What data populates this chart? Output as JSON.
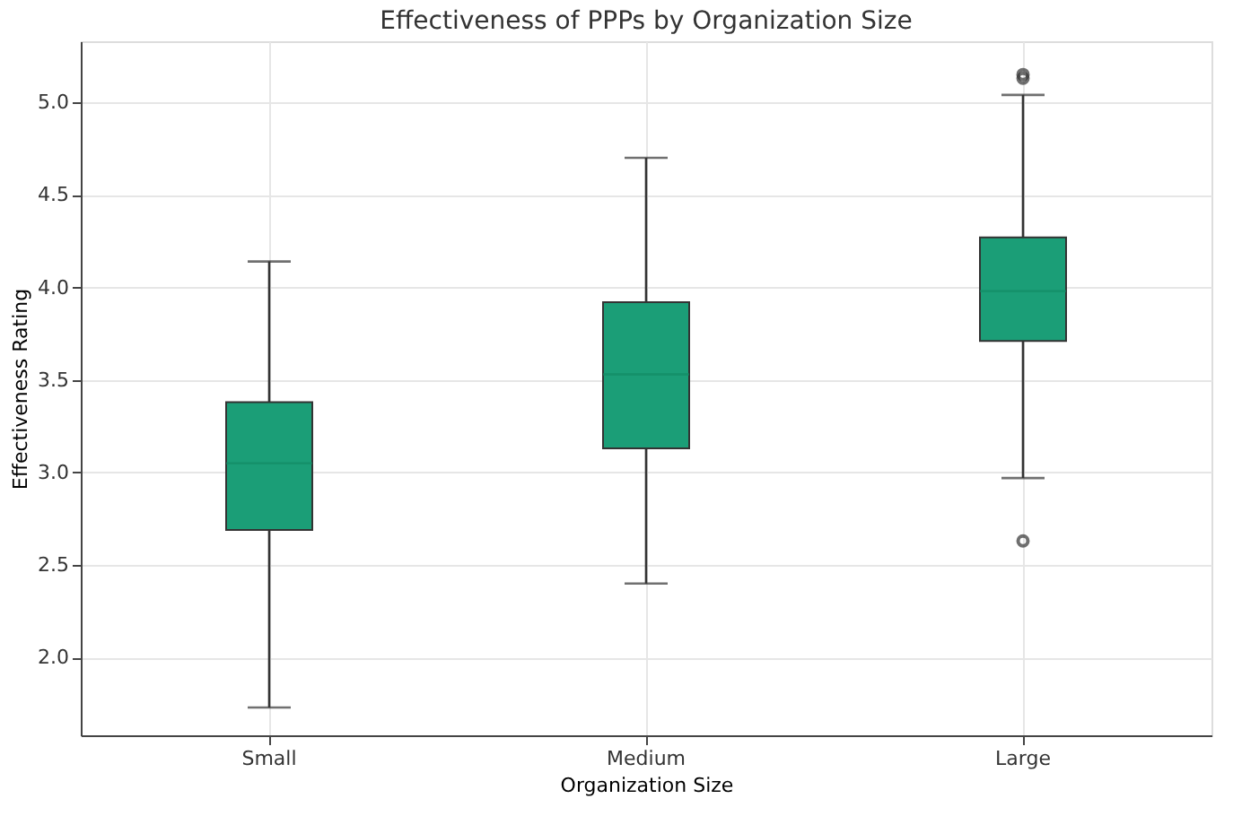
{
  "chart_data": {
    "type": "box",
    "title": "Effectiveness of PPPs by Organization Size",
    "xlabel": "Organization Size",
    "ylabel": "Effectiveness Rating",
    "categories": [
      "Small",
      "Medium",
      "Large"
    ],
    "boxes": [
      {
        "low": 1.73,
        "q1": 2.69,
        "median": 3.05,
        "q3": 3.38,
        "high": 4.14
      },
      {
        "low": 2.4,
        "q1": 3.13,
        "median": 3.53,
        "q3": 3.92,
        "high": 4.7
      },
      {
        "low": 2.97,
        "q1": 3.71,
        "median": 3.98,
        "q3": 4.27,
        "high": 5.04,
        "outliers": [
          2.63,
          5.13,
          5.15
        ]
      }
    ],
    "color": "#1b9e77",
    "ylim": [
      1.58,
      5.33
    ],
    "yticks": [
      {
        "value": 2.0,
        "label": "2.0"
      },
      {
        "value": 2.5,
        "label": "2.5"
      },
      {
        "value": 3.0,
        "label": "3.0"
      },
      {
        "value": 3.5,
        "label": "3.5"
      },
      {
        "value": 4.0,
        "label": "4.0"
      },
      {
        "value": 4.5,
        "label": "4.5"
      },
      {
        "value": 5.0,
        "label": "5.0"
      }
    ],
    "grid": true
  }
}
